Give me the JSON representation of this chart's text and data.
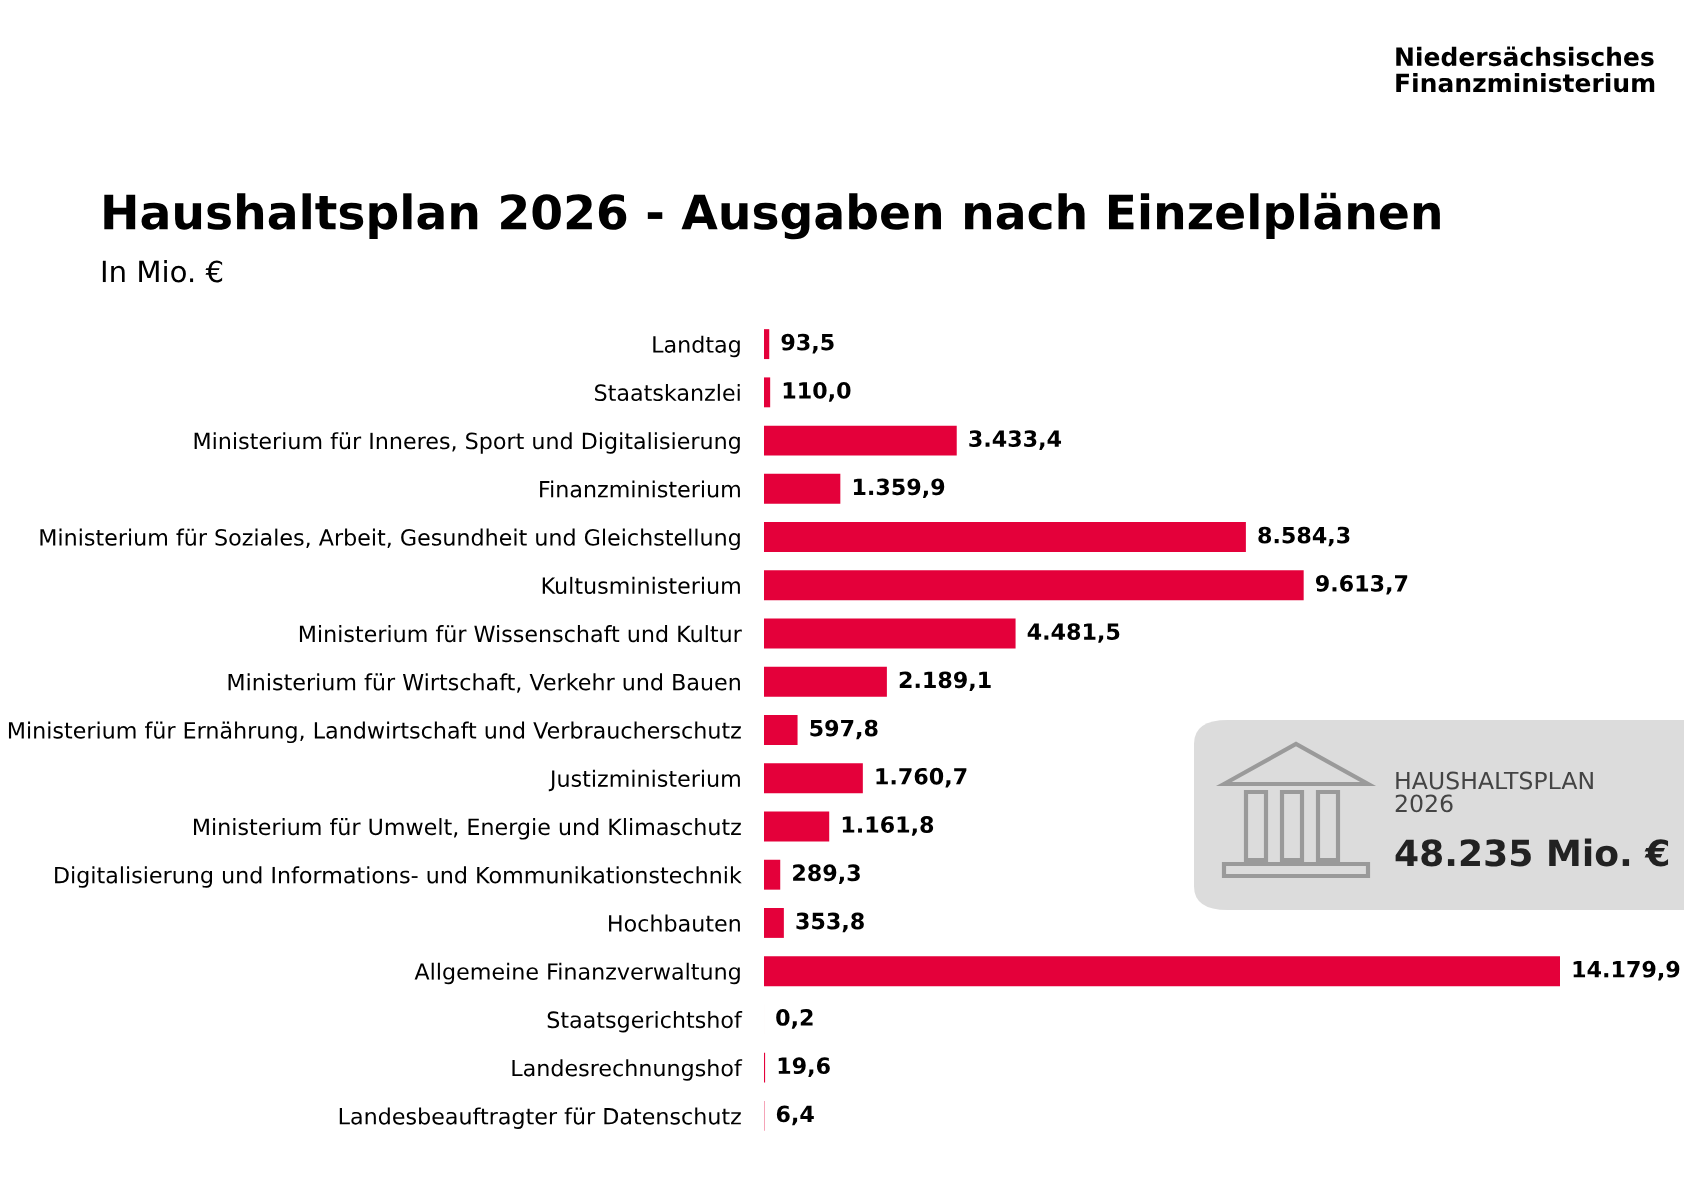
{
  "chart_data": {
    "type": "bar",
    "orientation": "horizontal",
    "title": "Haushaltsplan 2026 - Ausgaben nach Einzelplänen",
    "subtitle": "In Mio. €",
    "categories": [
      "Landtag",
      "Staatskanzlei",
      "Ministerium für Inneres, Sport und Digitalisierung",
      "Finanzministerium",
      "Ministerium für Soziales, Arbeit, Gesundheit und Gleichstellung",
      "Kultusministerium",
      "Ministerium für Wissenschaft und Kultur",
      "Ministerium für Wirtschaft, Verkehr und Bauen",
      "Ministerium für Ernährung, Landwirtschaft und Verbraucherschutz",
      "Justizministerium",
      "Ministerium für Umwelt, Energie und Klimaschutz",
      "Digitalisierung und Informations- und Kommunikationstechnik",
      "Hochbauten",
      "Allgemeine Finanzverwaltung",
      "Staatsgerichtshof",
      "Landesrechnungshof",
      "Landesbeauftragter für Datenschutz"
    ],
    "values": [
      93.5,
      110.0,
      3433.4,
      1359.9,
      8584.3,
      9613.7,
      4481.5,
      2189.1,
      597.8,
      1760.7,
      1161.8,
      289.3,
      353.8,
      14179.9,
      0.2,
      19.6,
      6.4
    ],
    "value_labels": [
      "93,5",
      "110,0",
      "3.433,4",
      "1.359,9",
      "8.584,3",
      "9.613,7",
      "4.481,5",
      "2.189,1",
      "597,8",
      "1.760,7",
      "1.161,8",
      "289,3",
      "353,8",
      "14.179,9",
      "0,2",
      "19,6",
      "6,4"
    ],
    "color": "#e4003a",
    "grid": false,
    "legend": false,
    "annotations": [
      "Niedersächsisches\nFinanzministerium",
      "HAUSHALTSPLAN\n2026",
      "48.235 Mio. €"
    ]
  }
}
